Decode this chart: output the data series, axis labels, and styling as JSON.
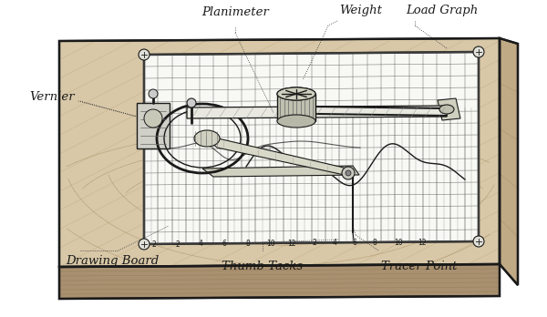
{
  "bg_color": "#ffffff",
  "ink_color": "#1a1a1a",
  "wood_light": "#d8c8a8",
  "wood_dark": "#a89070",
  "paper_color": "#f8f8f4",
  "labels": {
    "planimeter": "Planimeter",
    "weight": "Weight",
    "load_graph": "Load Graph",
    "vernier": "Vernier",
    "drawing_board": "Drawing Board",
    "thumb_tacks": "Thumb Tacks",
    "tracer_point": "Tracer Point"
  },
  "figsize": [
    6.0,
    3.48
  ],
  "dpi": 100
}
